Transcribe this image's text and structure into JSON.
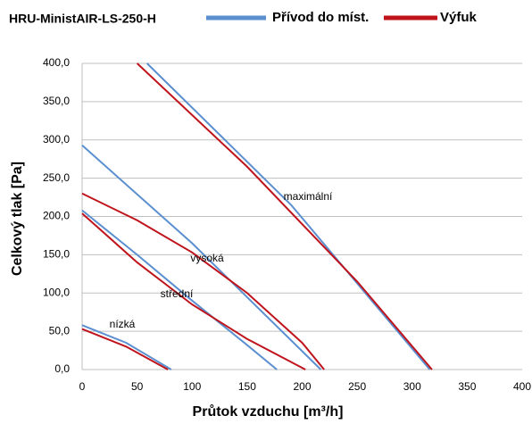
{
  "chart_data": {
    "type": "line",
    "title": "HRU-MinistAIR-LS-250-H",
    "x_label": "Průtok vzduchu [m³/h]",
    "y_label": "Celkový tlak [Pa]",
    "xlim": [
      0,
      400
    ],
    "xticks": [
      0,
      50,
      100,
      150,
      200,
      250,
      300,
      350,
      400
    ],
    "ylim": [
      0,
      400
    ],
    "yticks": [
      {
        "value": 0,
        "label": "0,0"
      },
      {
        "value": 50,
        "label": "50,0"
      },
      {
        "value": 100,
        "label": "100,0"
      },
      {
        "value": 150,
        "label": "150,0"
      },
      {
        "value": 200,
        "label": "200,0"
      },
      {
        "value": 250,
        "label": "250,0"
      },
      {
        "value": 300,
        "label": "300,0"
      },
      {
        "value": 350,
        "label": "350,0"
      },
      {
        "value": 400,
        "label": "400,0"
      }
    ],
    "grid": true,
    "annotations": [
      "maximální",
      "vysoká",
      "střední",
      "nízká"
    ],
    "series": [
      {
        "name": "Přívod do míst.",
        "color": "#5b8fd0",
        "curves": [
          {
            "x": [
              59,
              190,
              316
            ],
            "values": [
              400,
              215,
              0
            ]
          },
          {
            "x": [
              0,
              100,
              217
            ],
            "values": [
              293,
              165,
              0
            ]
          },
          {
            "x": [
              0,
              50,
              100,
              150,
              177
            ],
            "values": [
              208,
              150,
              90,
              32,
              0
            ]
          },
          {
            "x": [
              0,
              40,
              81
            ],
            "values": [
              58,
              35,
              0
            ]
          }
        ]
      },
      {
        "name": "Výfuk",
        "color": "#c0141c",
        "curves": [
          {
            "x": [
              50,
              150,
              250,
              318
            ],
            "values": [
              400,
              265,
              115,
              0
            ]
          },
          {
            "x": [
              0,
              50,
              100,
              150,
              200,
              220
            ],
            "values": [
              230,
              195,
              153,
              100,
              35,
              0
            ]
          },
          {
            "x": [
              0,
              50,
              100,
              150,
              203
            ],
            "values": [
              204,
              140,
              85,
              40,
              0
            ]
          },
          {
            "x": [
              0,
              40,
              78
            ],
            "values": [
              53,
              30,
              0
            ]
          }
        ]
      }
    ]
  }
}
